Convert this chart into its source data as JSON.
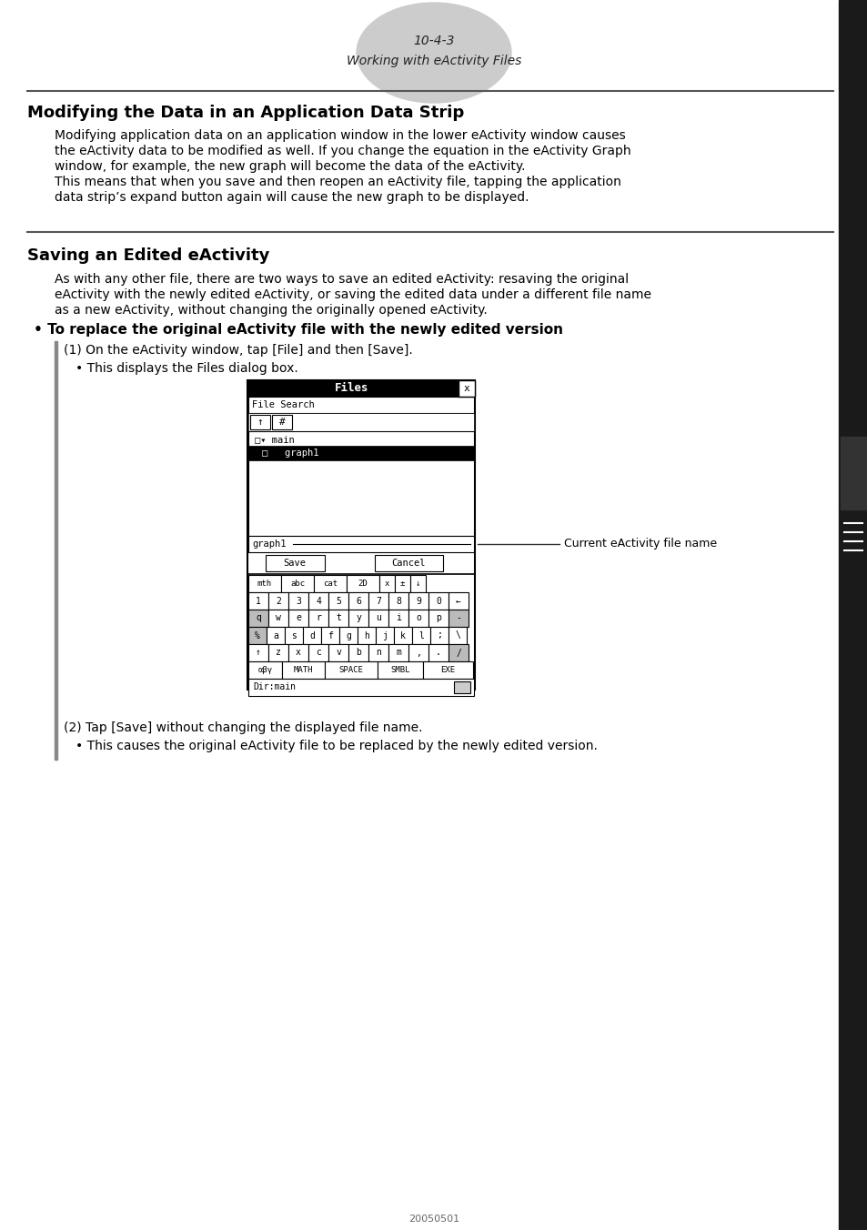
{
  "page_bg": "#ffffff",
  "header": {
    "ellipse_color": "#cccccc",
    "line1": "10-4-3",
    "line2": "Working with eActivity Files"
  },
  "section1": {
    "title": "Modifying the Data in an Application Data Strip",
    "body": [
      "Modifying application data on an application window in the lower eActivity window causes",
      "the eActivity data to be modified as well. If you change the equation in the eActivity Graph",
      "window, for example, the new graph will become the data of the eActivity.",
      "This means that when you save and then reopen an eActivity file, tapping the application",
      "data strip’s expand button again will cause the new graph to be displayed."
    ]
  },
  "section2": {
    "title": "Saving an Edited eActivity",
    "intro": [
      "As with any other file, there are two ways to save an edited eActivity: resaving the original",
      "eActivity with the newly edited eActivity, or saving the edited data under a different file name",
      "as a new eActivity, without changing the originally opened eActivity."
    ],
    "bullet_title": "• To replace the original eActivity file with the newly edited version",
    "step1": "(1) On the eActivity window, tap [File] and then [Save].",
    "step1_bullet": "• This displays the Files dialog box.",
    "annotation": "Current eActivity file name",
    "step2": "(2) Tap [Save] without changing the displayed file name.",
    "step2_bullet": "• This causes the original eActivity file to be replaced by the newly edited version."
  },
  "footer_text": "20050501"
}
